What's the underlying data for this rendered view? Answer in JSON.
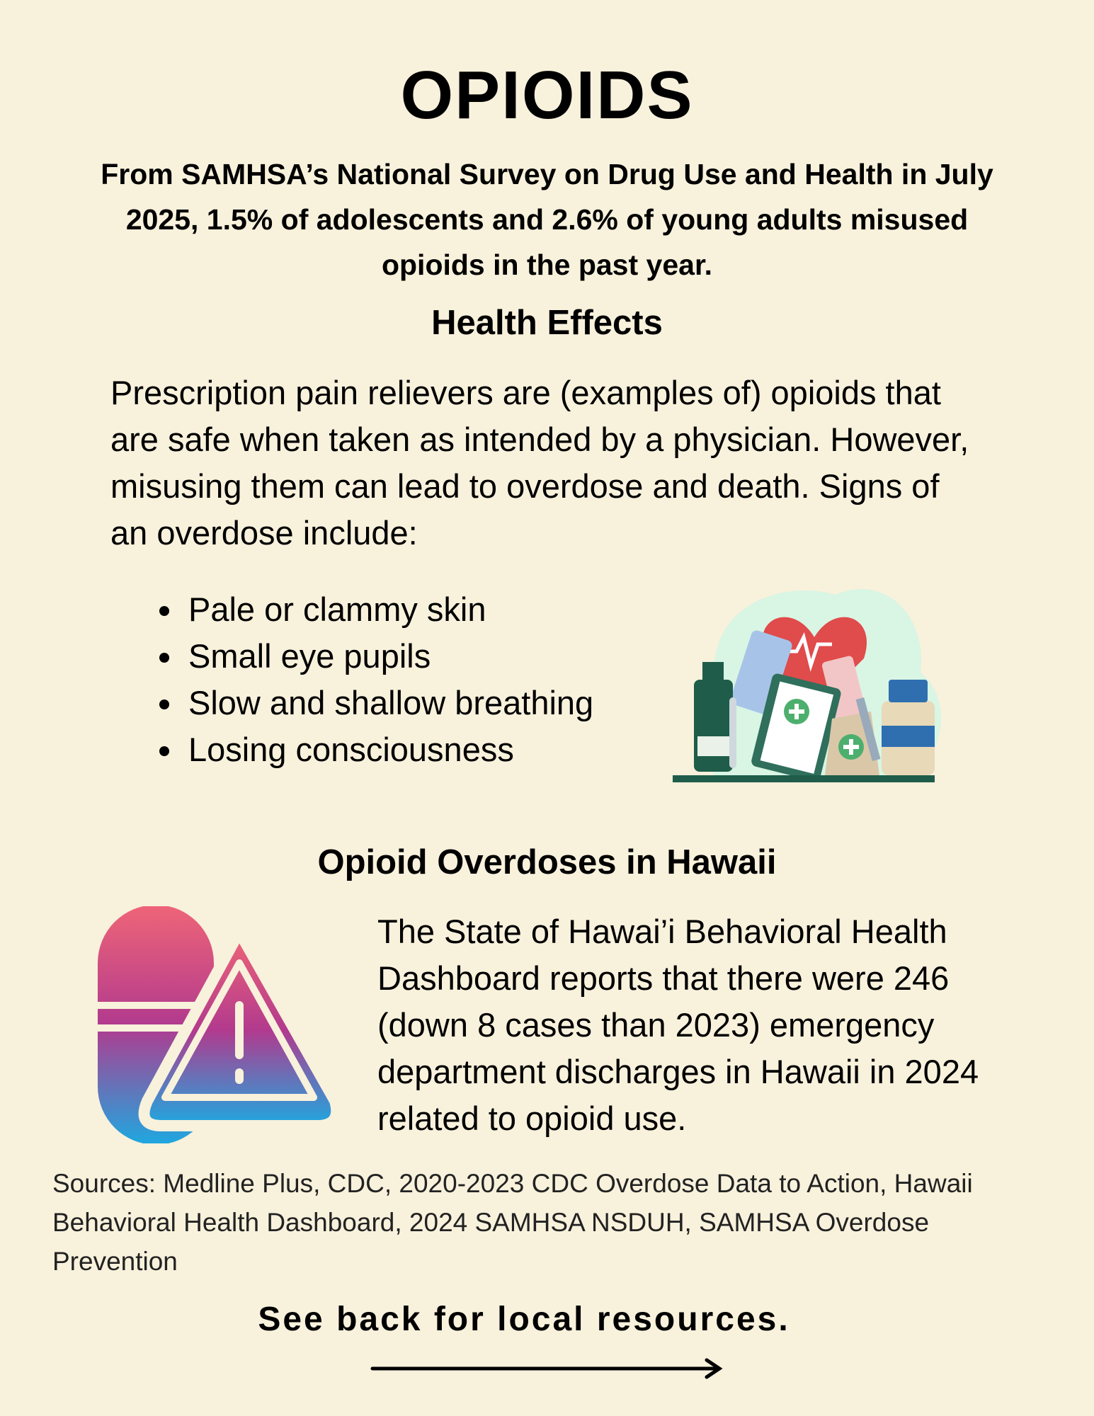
{
  "header": {
    "title": "OPIOIDS",
    "intro": "From SAMHSA’s National Survey on Drug Use and Health in July 2025, 1.5% of adolescents and 2.6% of young adults misused opioids in the past year."
  },
  "health_effects": {
    "heading": "Health Effects",
    "body": "Prescription pain relievers are (examples of) opioids that are safe when taken as intended by a physician. However, misusing them can lead to overdose and death. Signs of an overdose include:",
    "signs": [
      "Pale or clammy skin",
      "Small eye pupils",
      "Slow and shallow breathing",
      "Losing consciousness"
    ]
  },
  "hawaii": {
    "heading": "Opioid Overdoses in Hawaii",
    "body": "The State of Hawai’i Behavioral Health Dashboard reports that there were 246 (down 8 cases than 2023) emergency department discharges in Hawaii in 2024 related to opioid use."
  },
  "sources": "Sources: Medline Plus, CDC, 2020-2023 CDC Overdose Data to Action, Hawaii Behavioral Health Dashboard, 2024 SAMHSA NSDUH, SAMHSA Overdose Prevention",
  "footer": "See back for local resources."
}
